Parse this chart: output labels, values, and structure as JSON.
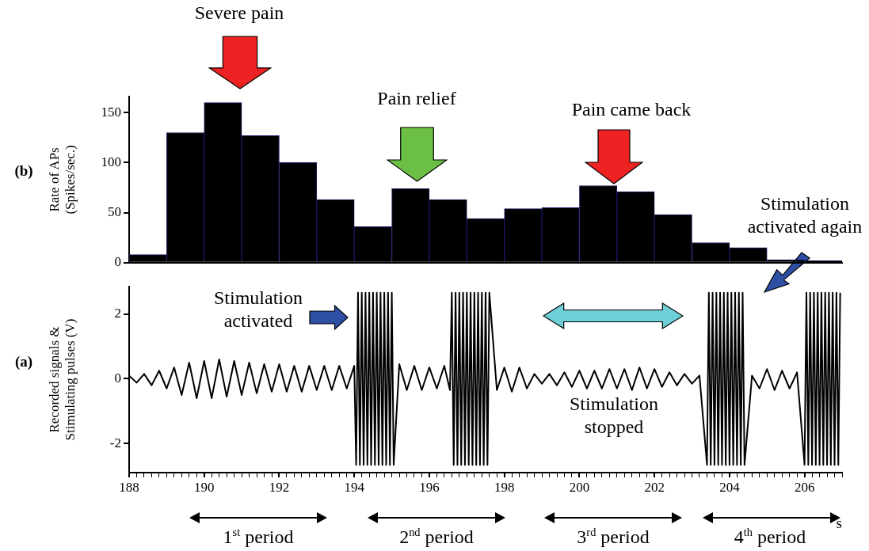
{
  "chart_data": [
    {
      "type": "histogram",
      "ylabel": "Rate of APs\n(Spikes/sec.)",
      "bins": [
        188,
        189,
        190,
        191,
        192,
        193,
        194,
        195,
        196,
        197,
        198,
        199,
        200,
        201,
        202,
        203,
        204,
        205,
        206,
        207
      ],
      "values": [
        8,
        130,
        160,
        127,
        100,
        63,
        36,
        74,
        63,
        44,
        54,
        55,
        77,
        71,
        48,
        20,
        15,
        3,
        2
      ],
      "color": "#000000",
      "xlim": [
        188,
        207
      ],
      "ylim": [
        0,
        166
      ],
      "yticks": [
        0,
        50,
        100,
        150
      ],
      "tick_labels": "y",
      "annotations": [
        "(b)",
        "Severe pain",
        "Pain relief",
        "Pain came back"
      ]
    },
    {
      "type": "line",
      "xlabel": "s",
      "ylabel": "Recorded signals &\nStimulating pulses (V)",
      "xlim": [
        188,
        207
      ],
      "ylim": [
        -2.9,
        2.85
      ],
      "yticks": [
        -2,
        0,
        2
      ],
      "xticks": [
        188,
        {
          "value": 188.2,
          "label": null
        },
        {
          "value": 188.4,
          "label": null
        },
        {
          "value": 188.6,
          "label": null
        },
        {
          "value": 188.8,
          "label": null
        },
        {
          "value": 189,
          "label": null
        },
        {
          "value": 189.2,
          "label": null
        },
        {
          "value": 189.4,
          "label": null
        },
        {
          "value": 189.6,
          "label": null
        },
        {
          "value": 189.8,
          "label": null
        },
        190,
        {
          "value": 190.2,
          "label": null
        },
        {
          "value": 190.4,
          "label": null
        },
        {
          "value": 190.6,
          "label": null
        },
        {
          "value": 190.8,
          "label": null
        },
        {
          "value": 191,
          "label": null
        },
        {
          "value": 191.2,
          "label": null
        },
        {
          "value": 191.4,
          "label": null
        },
        {
          "value": 191.6,
          "label": null
        },
        {
          "value": 191.8,
          "label": null
        },
        192,
        {
          "value": 192.2,
          "label": null
        },
        {
          "value": 192.4,
          "label": null
        },
        {
          "value": 192.6,
          "label": null
        },
        {
          "value": 192.8,
          "label": null
        },
        {
          "value": 193,
          "label": null
        },
        {
          "value": 193.2,
          "label": null
        },
        {
          "value": 193.4,
          "label": null
        },
        {
          "value": 193.6,
          "label": null
        },
        {
          "value": 193.8,
          "label": null
        },
        194,
        {
          "value": 194.2,
          "label": null
        },
        {
          "value": 194.4,
          "label": null
        },
        {
          "value": 194.6,
          "label": null
        },
        {
          "value": 194.8,
          "label": null
        },
        {
          "value": 195,
          "label": null
        },
        {
          "value": 195.2,
          "label": null
        },
        {
          "value": 195.4,
          "label": null
        },
        {
          "value": 195.6,
          "label": null
        },
        {
          "value": 195.8,
          "label": null
        },
        196,
        {
          "value": 196.2,
          "label": null
        },
        {
          "value": 196.4,
          "label": null
        },
        {
          "value": 196.6,
          "label": null
        },
        {
          "value": 196.8,
          "label": null
        },
        {
          "value": 197,
          "label": null
        },
        {
          "value": 197.2,
          "label": null
        },
        {
          "value": 197.4,
          "label": null
        },
        {
          "value": 197.6,
          "label": null
        },
        {
          "value": 197.8,
          "label": null
        },
        198,
        {
          "value": 198.2,
          "label": null
        },
        {
          "value": 198.4,
          "label": null
        },
        {
          "value": 198.6,
          "label": null
        },
        {
          "value": 198.8,
          "label": null
        },
        {
          "value": 199,
          "label": null
        },
        {
          "value": 199.2,
          "label": null
        },
        {
          "value": 199.4,
          "label": null
        },
        {
          "value": 199.6,
          "label": null
        },
        {
          "value": 199.8,
          "label": null
        },
        200,
        {
          "value": 200.2,
          "label": null
        },
        {
          "value": 200.4,
          "label": null
        },
        {
          "value": 200.6,
          "label": null
        },
        {
          "value": 200.8,
          "label": null
        },
        {
          "value": 201,
          "label": null
        },
        {
          "value": 201.2,
          "label": null
        },
        {
          "value": 201.4,
          "label": null
        },
        {
          "value": 201.6,
          "label": null
        },
        {
          "value": 201.8,
          "label": null
        },
        202,
        {
          "value": 202.2,
          "label": null
        },
        {
          "value": 202.4,
          "label": null
        },
        {
          "value": 202.6,
          "label": null
        },
        {
          "value": 202.8,
          "label": null
        },
        {
          "value": 203,
          "label": null
        },
        {
          "value": 203.2,
          "label": null
        },
        {
          "value": 203.4,
          "label": null
        },
        {
          "value": 203.6,
          "label": null
        },
        {
          "value": 203.8,
          "label": null
        },
        204,
        {
          "value": 204.2,
          "label": null
        },
        {
          "value": 204.4,
          "label": null
        },
        {
          "value": 204.6,
          "label": null
        },
        {
          "value": 204.8,
          "label": null
        },
        {
          "value": 205,
          "label": null
        },
        {
          "value": 205.2,
          "label": null
        },
        {
          "value": 205.4,
          "label": null
        },
        {
          "value": 205.6,
          "label": null
        },
        {
          "value": 205.8,
          "label": null
        },
        206,
        {
          "value": 206.2,
          "label": null
        },
        {
          "value": 206.4,
          "label": null
        },
        {
          "value": 206.6,
          "label": null
        },
        {
          "value": 206.8,
          "label": null
        },
        {
          "value": 207,
          "label": null
        }
      ],
      "series": [
        {
          "color": "#000000",
          "x": [
            188,
            188.2,
            188.4,
            188.6,
            188.8,
            189,
            189.2,
            189.4,
            189.6,
            189.8,
            190,
            190.2,
            190.4,
            190.6,
            190.8,
            191,
            191.2,
            191.4,
            191.6,
            191.8,
            192,
            192.2,
            192.4,
            192.6,
            192.8,
            193,
            193.2,
            193.4,
            193.6,
            193.8,
            194,
            194.05,
            194.1,
            194.15,
            194.2,
            194.25,
            194.3,
            194.35,
            194.4,
            194.45,
            194.5,
            194.55,
            194.6,
            194.65,
            194.7,
            194.75,
            194.8,
            194.85,
            194.9,
            194.95,
            195,
            195.05,
            195.2,
            195.4,
            195.6,
            195.8,
            196,
            196.2,
            196.4,
            196.55,
            196.6,
            196.65,
            196.7,
            196.75,
            196.8,
            196.85,
            196.9,
            196.95,
            197,
            197.05,
            197.1,
            197.15,
            197.2,
            197.25,
            197.3,
            197.35,
            197.4,
            197.45,
            197.5,
            197.55,
            197.6,
            197.8,
            198,
            198.2,
            198.4,
            198.6,
            198.8,
            199,
            199.2,
            199.4,
            199.6,
            199.8,
            200,
            200.2,
            200.4,
            200.6,
            200.8,
            201,
            201.2,
            201.4,
            201.6,
            201.8,
            202,
            202.2,
            202.4,
            202.6,
            202.8,
            203,
            203.2,
            203.4,
            203.45,
            203.5,
            203.55,
            203.6,
            203.65,
            203.7,
            203.75,
            203.8,
            203.85,
            203.9,
            203.95,
            204,
            204.05,
            204.1,
            204.15,
            204.2,
            204.25,
            204.3,
            204.35,
            204.4,
            204.6,
            204.8,
            205,
            205.2,
            205.4,
            205.6,
            205.8,
            206,
            206.05,
            206.1,
            206.15,
            206.2,
            206.25,
            206.3,
            206.35,
            206.4,
            206.45,
            206.5,
            206.55,
            206.6,
            206.65,
            206.7,
            206.75,
            206.8,
            206.85,
            206.9,
            206.95
          ],
          "values": [
            0.1,
            -0.12,
            0.15,
            -0.2,
            0.25,
            -0.3,
            0.35,
            -0.5,
            0.5,
            -0.6,
            0.55,
            -0.6,
            0.6,
            -0.55,
            0.55,
            -0.5,
            0.5,
            -0.45,
            0.45,
            -0.4,
            0.45,
            -0.4,
            0.4,
            -0.4,
            0.4,
            -0.35,
            0.4,
            -0.35,
            0.4,
            -0.3,
            0.4,
            -2.66,
            2.66,
            -2.66,
            2.66,
            -2.66,
            2.66,
            -2.66,
            2.66,
            -2.66,
            2.66,
            -2.66,
            2.66,
            -2.66,
            2.66,
            -2.66,
            2.66,
            -2.66,
            2.66,
            -2.66,
            2.66,
            -2.66,
            0.45,
            -0.35,
            0.4,
            -0.35,
            0.35,
            -0.3,
            0.4,
            -0.35,
            2.66,
            -2.66,
            2.66,
            -2.66,
            2.66,
            -2.66,
            2.66,
            -2.66,
            2.66,
            -2.66,
            2.66,
            -2.66,
            2.66,
            -2.66,
            2.66,
            -2.66,
            2.66,
            -2.66,
            2.66,
            -2.66,
            2.66,
            -0.35,
            0.35,
            -0.4,
            0.35,
            -0.3,
            0.15,
            -0.15,
            0.15,
            -0.2,
            0.2,
            -0.25,
            0.25,
            -0.3,
            0.25,
            -0.3,
            0.3,
            -0.3,
            0.3,
            -0.35,
            0.35,
            -0.3,
            0.3,
            -0.25,
            0.2,
            -0.2,
            0.15,
            -0.15,
            0.1,
            -2.66,
            2.66,
            -2.66,
            2.66,
            -2.66,
            2.66,
            -2.66,
            2.66,
            -2.66,
            2.66,
            -2.66,
            2.66,
            -2.66,
            2.66,
            -2.66,
            2.66,
            -2.66,
            2.66,
            -2.66,
            2.66,
            -2.66,
            0.1,
            -0.3,
            0.3,
            -0.35,
            0.25,
            -0.3,
            0.2,
            -2.66,
            2.66,
            -2.66,
            2.66,
            -2.66,
            2.66,
            -2.66,
            2.66,
            -2.66,
            2.66,
            -2.66,
            2.66,
            -2.66,
            2.66,
            -2.66,
            2.66,
            -2.66,
            2.66,
            -2.66,
            2.66
          ]
        }
      ],
      "annotations": [
        "(a)",
        "Stimulation activated",
        "Stimulation stopped",
        "Stimulation activated again",
        "1$^{st}$ period",
        "2$^{nd}$ period",
        "3$^{rd}$ period",
        "4$^{th}$ period"
      ]
    }
  ]
}
